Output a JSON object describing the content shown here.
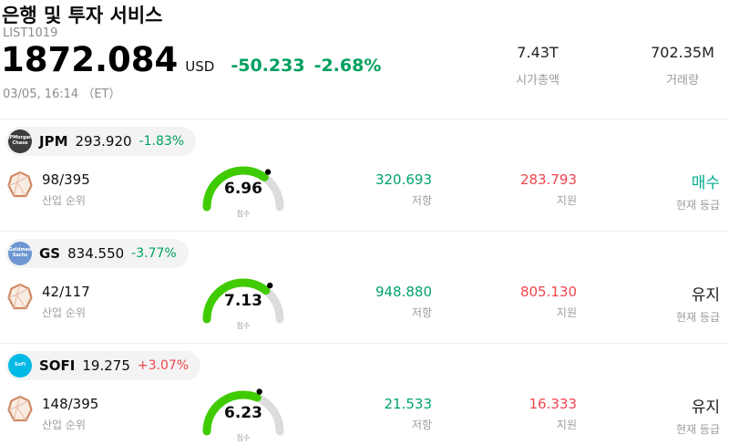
{
  "header": {
    "title": "은행 및 투자 서비스",
    "list_id": "LIST1019",
    "price": "1872.084",
    "currency": "USD",
    "change_value": "-50.233",
    "change_percent": "-2.68%",
    "direction": "down",
    "timestamp": "03/05, 16:14 （ET）",
    "market_cap": {
      "value": "7.43T",
      "label": "시가총액"
    },
    "volume": {
      "value": "702.35M",
      "label": "거래량"
    }
  },
  "labels": {
    "rank": "산업 순위",
    "score": "점수",
    "resistance": "저항",
    "support": "지원",
    "rating": "현재 등급"
  },
  "colors": {
    "down_green": "#00a05f",
    "up_red": "#f0454c",
    "resistance_green": "#00a36a",
    "support_red": "#f0454c",
    "buy_teal": "#00ab90",
    "gauge_green": "#3fcb00"
  },
  "stocks": [
    {
      "ticker": "JPM",
      "price": "293.920",
      "change": "-1.83%",
      "direction": "down",
      "logo_text": "JPMorgan Chase",
      "logo_bg": "#3d3d3d",
      "rank": "98/395",
      "score": 6.96,
      "score_text": "6.96",
      "resistance": "320.693",
      "support": "283.793",
      "rating": "매수",
      "rating_type": "buy"
    },
    {
      "ticker": "GS",
      "price": "834.550",
      "change": "-3.77%",
      "direction": "down",
      "logo_text": "Goldman Sachs",
      "logo_bg": "#6e96d3",
      "rank": "42/117",
      "score": 7.13,
      "score_text": "7.13",
      "resistance": "948.880",
      "support": "805.130",
      "rating": "유지",
      "rating_type": "hold"
    },
    {
      "ticker": "SOFI",
      "price": "19.275",
      "change": "+3.07%",
      "direction": "up",
      "logo_text": "SoFi",
      "logo_bg": "#00b9e5",
      "rank": "148/395",
      "score": 6.23,
      "score_text": "6.23",
      "resistance": "21.533",
      "support": "16.333",
      "rating": "유지",
      "rating_type": "hold"
    }
  ]
}
